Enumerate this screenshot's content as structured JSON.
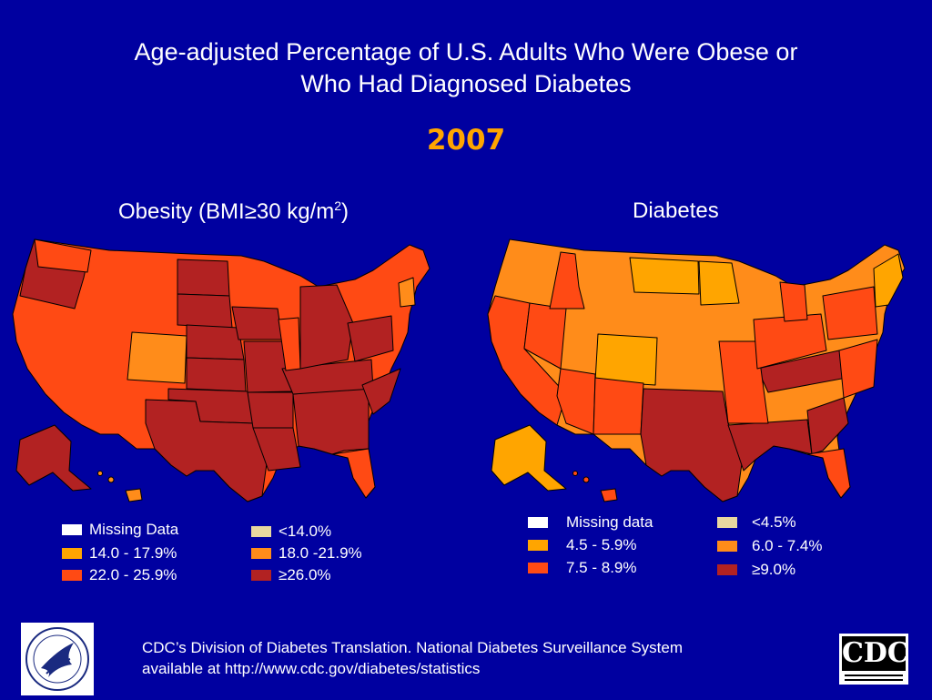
{
  "header": {
    "title_line1": "Age-adjusted Percentage of U.S. Adults Who Were Obese or",
    "title_line2": "Who Had Diagnosed Diabetes",
    "year": "2007"
  },
  "obesity": {
    "title_text": "Obesity (BMI≥30 kg/m",
    "title_sup": "2",
    "title_close": ")",
    "legend": [
      {
        "label": "Missing Data",
        "color": "#ffffff"
      },
      {
        "label": "<14.0%",
        "color": "#e8d8a0"
      },
      {
        "label": "14.0 - 17.9%",
        "color": "#ffa500"
      },
      {
        "label": "18.0 -21.9%",
        "color": "#ff8c1a"
      },
      {
        "label": "22.0 - 25.9%",
        "color": "#ff4a14"
      },
      {
        "label": "≥26.0%",
        "color": "#b22222"
      }
    ]
  },
  "diabetes": {
    "title": "Diabetes",
    "legend": [
      {
        "label": "Missing data",
        "color": "#ffffff"
      },
      {
        "label": "<4.5%",
        "color": "#e8d8a0"
      },
      {
        "label": "4.5 - 5.9%",
        "color": "#ffa500"
      },
      {
        "label": "6.0 - 7.4%",
        "color": "#ff8c1a"
      },
      {
        "label": "7.5 - 8.9%",
        "color": "#ff4a14"
      },
      {
        "label": "≥9.0%",
        "color": "#b22222"
      }
    ]
  },
  "footer": {
    "line1": "CDC’s Division of Diabetes Translation.  National Diabetes Surveillance System",
    "line2": "available at http://www.cdc.gov/diabetes/statistics"
  },
  "logos": {
    "hhs": "hhs-seal-icon",
    "cdc_text": "CDC"
  }
}
